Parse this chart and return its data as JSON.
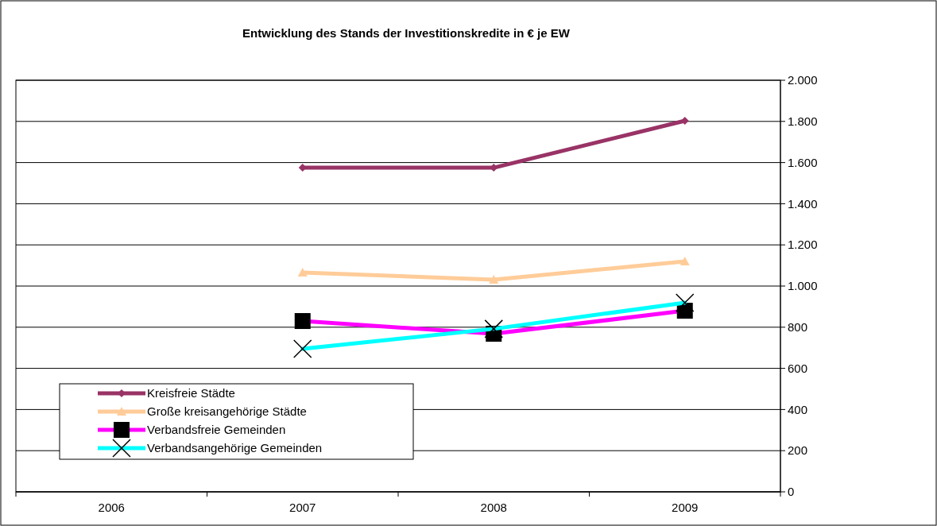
{
  "chart_data": {
    "type": "line",
    "title": "Entwicklung des Stands der Investitionskredite in € je EW",
    "categories": [
      "2006",
      "2007",
      "2008",
      "2009"
    ],
    "series": [
      {
        "name": "Kreisfreie Städte",
        "color": "#993366",
        "marker": "diamond",
        "values": [
          null,
          1575,
          1575,
          1803
        ]
      },
      {
        "name": "Große kreisangehörige Städte",
        "color": "#ffcc99",
        "marker": "triangle",
        "values": [
          null,
          1066,
          1031,
          1120
        ]
      },
      {
        "name": "Verbandsfreie Gemeinden",
        "color": "#ff00ff",
        "marker": "square",
        "values": [
          null,
          830,
          768,
          880
        ]
      },
      {
        "name": "Verbandsangehörige Gemeinden",
        "color": "#00ffff",
        "marker": "cross",
        "values": [
          null,
          695,
          792,
          919
        ]
      }
    ],
    "ylim": [
      0,
      2000
    ],
    "yticks": [
      {
        "value": 0,
        "label": "0"
      },
      {
        "value": 200,
        "label": "200"
      },
      {
        "value": 400,
        "label": "400"
      },
      {
        "value": 600,
        "label": "600"
      },
      {
        "value": 800,
        "label": "800"
      },
      {
        "value": 1000,
        "label": "1.000"
      },
      {
        "value": 1200,
        "label": "1.200"
      },
      {
        "value": 1400,
        "label": "1.400"
      },
      {
        "value": 1600,
        "label": "1.600"
      },
      {
        "value": 1800,
        "label": "1.800"
      },
      {
        "value": 2000,
        "label": "2.000"
      }
    ],
    "grid": "y",
    "legend": "bottom left",
    "line_style": "solid"
  }
}
